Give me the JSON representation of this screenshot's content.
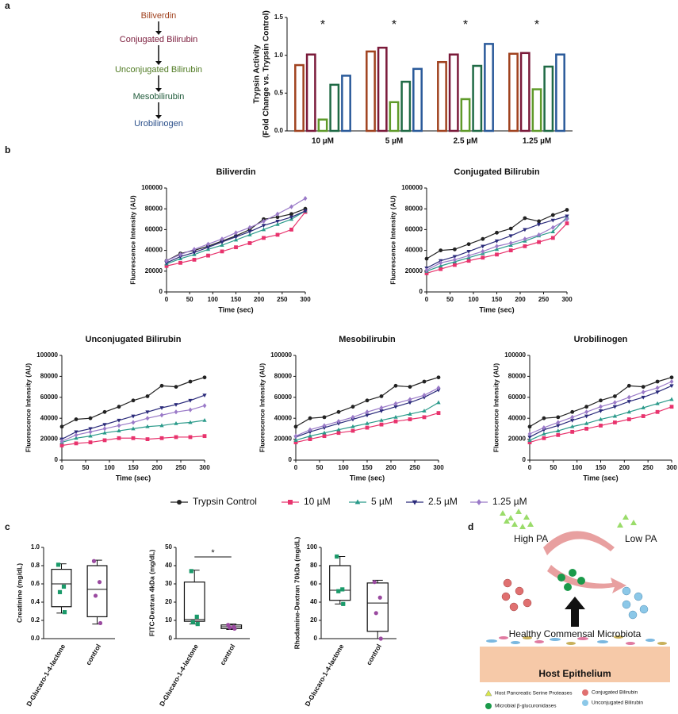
{
  "panel_labels": [
    "a",
    "b",
    "c",
    "d"
  ],
  "pathway": [
    {
      "label": "Biliverdin",
      "color": "#a0421f"
    },
    {
      "label": "Conjugated Bilirubin",
      "color": "#7a1a3a"
    },
    {
      "label": "Unconjugated Bilirubin",
      "color": "#4f7a22"
    },
    {
      "label": "Mesobilirubin",
      "color": "#1f5a3a"
    },
    {
      "label": "Urobilinogen",
      "color": "#2a4f8a"
    }
  ],
  "line_legend": [
    {
      "name": "Trypsin Control",
      "color": "#222222",
      "marker": "circle"
    },
    {
      "name": "10 µM",
      "color": "#e8336d",
      "marker": "square"
    },
    {
      "name": "5 µM",
      "color": "#2a9a8a",
      "marker": "triangle"
    },
    {
      "name": "2.5 µM",
      "color": "#2a2a7a",
      "marker": "triangle-down"
    },
    {
      "name": "1.25 µM",
      "color": "#9a7ac8",
      "marker": "diamond"
    }
  ],
  "chart_data": [
    {
      "type": "bar",
      "ylabel": [
        "Trypsin Activity",
        "(Fold Change vs. Trypsin Control)"
      ],
      "categories": [
        "10 µM",
        "5 µM",
        "2.5 µM",
        "1.25 µM"
      ],
      "annotations": [
        "*",
        "*",
        "*",
        "*"
      ],
      "series": [
        {
          "color": "#a0421f",
          "values": [
            0.87,
            1.05,
            0.91,
            1.02
          ]
        },
        {
          "color": "#7a1a3a",
          "values": [
            1.01,
            1.1,
            1.01,
            1.03
          ]
        },
        {
          "color": "#5f9a2a",
          "values": [
            0.15,
            0.38,
            0.42,
            0.55
          ]
        },
        {
          "color": "#1f6a45",
          "values": [
            0.61,
            0.65,
            0.86,
            0.85
          ]
        },
        {
          "color": "#2a5a9a",
          "values": [
            0.73,
            0.82,
            1.15,
            1.01
          ]
        }
      ],
      "ylim": [
        0,
        1.5
      ],
      "yticks": [
        {
          "value": 0,
          "label": "0.0"
        },
        {
          "value": 0.5,
          "label": "0.5"
        },
        {
          "value": 1,
          "label": "1.0"
        },
        {
          "value": 1.5,
          "label": "1.5"
        }
      ]
    },
    {
      "type": "line",
      "title": "Biliverdin",
      "xlabel": "Time (sec)",
      "ylabel": "Fluorescence Intensity (AU)",
      "x": [
        0,
        30,
        60,
        90,
        120,
        150,
        180,
        210,
        240,
        270,
        300
      ],
      "series": [
        {
          "values": [
            30000,
            37000,
            40000,
            44000,
            49000,
            54000,
            60000,
            70000,
            72000,
            75000,
            80000
          ]
        },
        {
          "values": [
            25000,
            28000,
            31000,
            35000,
            39000,
            43000,
            47000,
            52000,
            55000,
            60000,
            77000
          ]
        },
        {
          "values": [
            27000,
            32000,
            36000,
            41000,
            45000,
            50000,
            55000,
            60000,
            65000,
            70000,
            78000
          ]
        },
        {
          "values": [
            28000,
            34000,
            38000,
            43000,
            48000,
            53000,
            58000,
            64000,
            68000,
            72000,
            78000
          ]
        },
        {
          "values": [
            30000,
            36000,
            41000,
            46000,
            51000,
            57000,
            62000,
            68000,
            75000,
            82000,
            90000
          ]
        }
      ],
      "xlim": [
        0,
        300
      ],
      "xticks": [
        0,
        50,
        100,
        150,
        200,
        250,
        300
      ],
      "ylim": [
        0,
        100000
      ],
      "yticks": [
        0,
        20000,
        40000,
        60000,
        80000,
        100000
      ]
    },
    {
      "type": "line",
      "title": "Conjugated Bilirubin",
      "xlabel": "Time (sec)",
      "ylabel": "Fluorescence Intensity (AU)",
      "x": [
        0,
        30,
        60,
        90,
        120,
        150,
        180,
        210,
        240,
        270,
        300
      ],
      "series": [
        {
          "values": [
            32000,
            40000,
            41000,
            46000,
            51000,
            57000,
            61000,
            71000,
            68000,
            74000,
            79000
          ]
        },
        {
          "values": [
            18000,
            22000,
            26000,
            30000,
            33000,
            36000,
            40000,
            44000,
            48000,
            52000,
            66000
          ]
        },
        {
          "values": [
            20000,
            25000,
            29000,
            33000,
            37000,
            41000,
            45000,
            49000,
            54000,
            58000,
            72000
          ]
        },
        {
          "values": [
            23000,
            30000,
            34000,
            39000,
            44000,
            49000,
            54000,
            60000,
            65000,
            69000,
            73000
          ]
        },
        {
          "values": [
            21000,
            28000,
            31000,
            35000,
            39000,
            44000,
            47000,
            51000,
            55000,
            62000,
            70000
          ]
        }
      ],
      "xlim": [
        0,
        300
      ],
      "xticks": [
        0,
        50,
        100,
        150,
        200,
        250,
        300
      ],
      "ylim": [
        0,
        100000
      ],
      "yticks": [
        0,
        20000,
        40000,
        60000,
        80000,
        100000
      ]
    },
    {
      "type": "line",
      "title": "Unconjugated Bilirubin",
      "xlabel": "Time (sec)",
      "ylabel": "Fluorescence Intensity (AU)",
      "x": [
        0,
        30,
        60,
        90,
        120,
        150,
        180,
        210,
        240,
        270,
        300
      ],
      "series": [
        {
          "values": [
            32000,
            39000,
            40000,
            46000,
            51000,
            57000,
            61000,
            71000,
            70000,
            75000,
            79000
          ]
        },
        {
          "values": [
            14000,
            16000,
            17000,
            19000,
            21000,
            21000,
            20000,
            21000,
            22000,
            22000,
            23000
          ]
        },
        {
          "values": [
            17000,
            21000,
            23000,
            26000,
            28000,
            30000,
            32000,
            33000,
            35000,
            36000,
            38000
          ]
        },
        {
          "values": [
            20000,
            27000,
            30000,
            34000,
            38000,
            42000,
            46000,
            50000,
            53000,
            57000,
            62000
          ]
        },
        {
          "values": [
            18000,
            24000,
            27000,
            30000,
            33000,
            36000,
            40000,
            43000,
            46000,
            48000,
            52000
          ]
        }
      ],
      "xlim": [
        0,
        300
      ],
      "xticks": [
        0,
        50,
        100,
        150,
        200,
        250,
        300
      ],
      "ylim": [
        0,
        100000
      ],
      "yticks": [
        0,
        20000,
        40000,
        60000,
        80000,
        100000
      ]
    },
    {
      "type": "line",
      "title": "Mesobilirubin",
      "xlabel": "Time (sec)",
      "ylabel": "Fluorescence Intensity (AU)",
      "x": [
        0,
        30,
        60,
        90,
        120,
        150,
        180,
        210,
        240,
        270,
        300
      ],
      "series": [
        {
          "values": [
            32000,
            40000,
            41000,
            46000,
            51000,
            57000,
            61000,
            71000,
            70000,
            75000,
            79000
          ]
        },
        {
          "values": [
            17000,
            20000,
            23000,
            26000,
            28000,
            31000,
            34000,
            37000,
            39000,
            41000,
            45000
          ]
        },
        {
          "values": [
            19000,
            23000,
            26000,
            29000,
            32000,
            35000,
            38000,
            41000,
            44000,
            47000,
            55000
          ]
        },
        {
          "values": [
            22000,
            27000,
            31000,
            35000,
            39000,
            43000,
            47000,
            51000,
            55000,
            60000,
            67000
          ]
        },
        {
          "values": [
            23000,
            29000,
            33000,
            37000,
            41000,
            46000,
            50000,
            54000,
            58000,
            62000,
            69000
          ]
        }
      ],
      "xlim": [
        0,
        300
      ],
      "xticks": [
        0,
        50,
        100,
        150,
        200,
        250,
        300
      ],
      "ylim": [
        0,
        100000
      ],
      "yticks": [
        0,
        20000,
        40000,
        60000,
        80000,
        100000
      ]
    },
    {
      "type": "line",
      "title": "Urobilinogen",
      "xlabel": "Time (sec)",
      "ylabel": "Fluorescence Intensity (AU)",
      "x": [
        0,
        30,
        60,
        90,
        120,
        150,
        180,
        210,
        240,
        270,
        300
      ],
      "series": [
        {
          "values": [
            32000,
            40000,
            41000,
            46000,
            51000,
            57000,
            61000,
            71000,
            70000,
            75000,
            79000
          ]
        },
        {
          "values": [
            17000,
            21000,
            24000,
            27000,
            30000,
            33000,
            36000,
            39000,
            42000,
            46000,
            51000
          ]
        },
        {
          "values": [
            19000,
            25000,
            28000,
            32000,
            35000,
            39000,
            42000,
            46000,
            50000,
            54000,
            58000
          ]
        },
        {
          "values": [
            22000,
            29000,
            33000,
            38000,
            42000,
            47000,
            51000,
            56000,
            60000,
            65000,
            71000
          ]
        },
        {
          "values": [
            25000,
            31000,
            36000,
            41000,
            46000,
            51000,
            55000,
            60000,
            65000,
            69000,
            75000
          ]
        }
      ],
      "xlim": [
        0,
        300
      ],
      "xticks": [
        0,
        50,
        100,
        150,
        200,
        250,
        300
      ],
      "ylim": [
        0,
        100000
      ],
      "yticks": [
        0,
        20000,
        40000,
        60000,
        80000,
        100000
      ]
    },
    {
      "type": "box",
      "ylabel": "Creatinine (mg/dL)",
      "categories": [
        "D-Glucaro-1-4-lactone",
        "control"
      ],
      "boxes": [
        {
          "min": 0.28,
          "q1": 0.35,
          "median": 0.6,
          "q3": 0.76,
          "max": 0.82,
          "points": [
            0.81,
            0.57,
            0.51,
            0.29
          ],
          "color": "#1a9a6a",
          "marker": "square"
        },
        {
          "min": 0.16,
          "q1": 0.24,
          "median": 0.54,
          "q3": 0.8,
          "max": 0.86,
          "points": [
            0.85,
            0.62,
            0.47,
            0.17
          ],
          "color": "#9a4aa0",
          "marker": "circle"
        }
      ],
      "ylim": [
        0,
        1
      ],
      "yticks": [
        {
          "value": 0,
          "label": "0.0"
        },
        {
          "value": 0.2,
          "label": "0.2"
        },
        {
          "value": 0.4,
          "label": "0.4"
        },
        {
          "value": 0.6,
          "label": "0.6"
        },
        {
          "value": 0.8,
          "label": "0.8"
        },
        {
          "value": 1,
          "label": "1.0"
        }
      ]
    },
    {
      "type": "box",
      "ylabel": "FITC-Dextran 4kDa (mg/dL)",
      "categories": [
        "D-Glucaro-1-4-lactone",
        "control"
      ],
      "significance": "*",
      "boxes": [
        {
          "min": 8,
          "q1": 9.5,
          "median": 10.5,
          "q3": 31,
          "max": 37.5,
          "points": [
            37,
            12,
            9,
            8
          ],
          "color": "#1a9a6a",
          "marker": "square"
        },
        {
          "min": 5,
          "q1": 5.5,
          "median": 6.5,
          "q3": 7.5,
          "max": 8,
          "points": [
            7.5,
            6.5,
            6,
            5.5
          ],
          "color": "#9a4aa0",
          "marker": "circle"
        }
      ],
      "ylim": [
        0,
        50
      ],
      "yticks": [
        0,
        10,
        20,
        30,
        40,
        50
      ]
    },
    {
      "type": "box",
      "ylabel": "Rhodamine-Dextran 70kDa (mg/dL)",
      "categories": [
        "D-Glucaro-1-4-lactone",
        "control"
      ],
      "boxes": [
        {
          "min": 38,
          "q1": 42,
          "median": 53,
          "q3": 80,
          "max": 90,
          "points": [
            90,
            54,
            52,
            38
          ],
          "color": "#1a9a6a",
          "marker": "square"
        },
        {
          "min": 0,
          "q1": 8,
          "median": 39,
          "q3": 61,
          "max": 64,
          "points": [
            62,
            45,
            28,
            0
          ],
          "color": "#9a4aa0",
          "marker": "circle"
        }
      ],
      "ylim": [
        0,
        100
      ],
      "yticks": [
        0,
        20,
        40,
        60,
        80,
        100
      ]
    }
  ],
  "diagram": {
    "high": "High PA",
    "low": "Low PA",
    "microbiota": "Healthy Commensal Microbiota",
    "epithelium": "Host Epithelium",
    "legend": [
      "Host Pancreatic Serine Proteases",
      "Conjugated Bilirubin",
      "Microbial β-glucuronidases",
      "Unconjugated Bilirubin"
    ]
  }
}
